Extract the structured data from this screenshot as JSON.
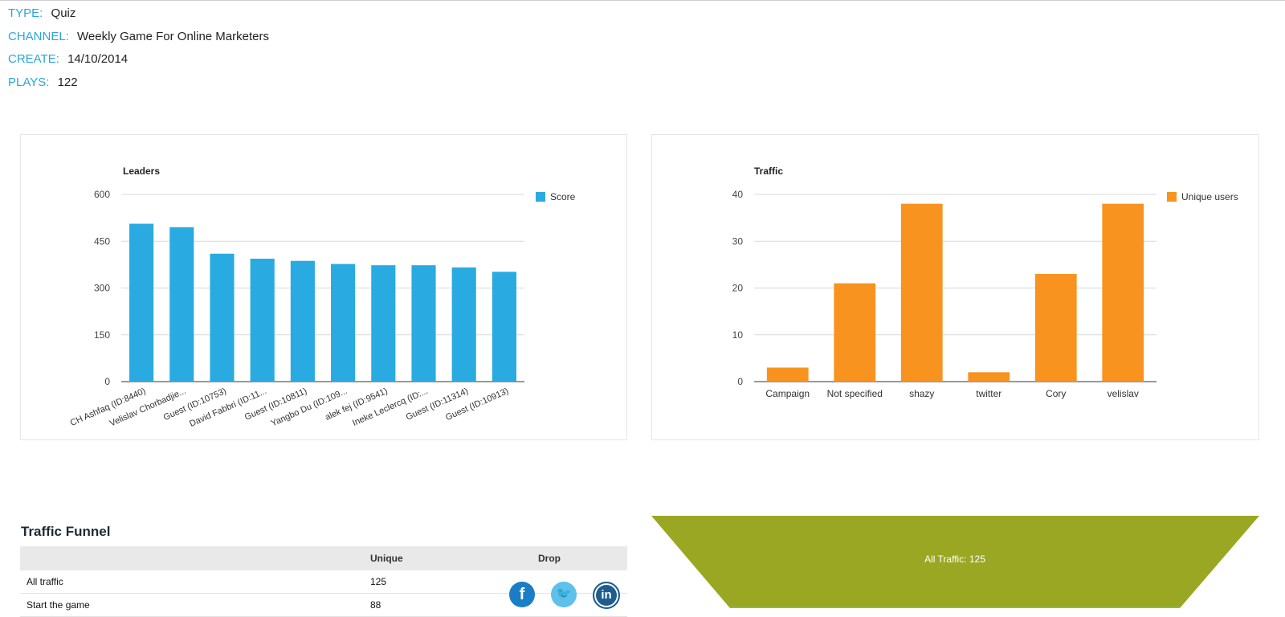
{
  "meta": {
    "type_label": "TYPE:",
    "type_value": "Quiz",
    "channel_label": "CHANNEL:",
    "channel_value": "Weekly Game For Online Marketers",
    "create_label": "CREATE:",
    "create_value": "14/10/2014",
    "plays_label": "PLAYS:",
    "plays_value": "122"
  },
  "chart_data": [
    {
      "type": "bar",
      "title": "Leaders",
      "categories": [
        "CH Ashfaq (ID:8440)",
        "Velislav Chorbadjie...",
        "Guest (ID:10753)",
        "David Fabbri (ID:11...",
        "Guest (ID:10811)",
        "Yangbo Du (ID:109...",
        "alek fej (ID:9541)",
        "Ineke Leclercq (ID:...",
        "Guest (ID:11314)",
        "Guest (ID:10913)"
      ],
      "series": [
        {
          "name": "Score",
          "values": [
            506,
            495,
            410,
            394,
            387,
            377,
            373,
            373,
            366,
            352
          ]
        }
      ],
      "ylim": [
        0,
        600
      ],
      "yticks": [
        "0",
        "150",
        "300",
        "450",
        "600"
      ],
      "color": "#29abe2",
      "legend": "right",
      "grid": true
    },
    {
      "type": "bar",
      "title": "Traffic",
      "categories": [
        "Campaign",
        "Not specified",
        "shazy",
        "twitter",
        "Cory",
        "velislav"
      ],
      "series": [
        {
          "name": "Unique users",
          "values": [
            3,
            21,
            38,
            2,
            23,
            38
          ]
        }
      ],
      "ylim": [
        0,
        40
      ],
      "yticks": [
        "0",
        "10",
        "20",
        "30",
        "40"
      ],
      "color": "#f7931e",
      "legend": "right",
      "grid": true
    }
  ],
  "funnel": {
    "heading": "Traffic Funnel",
    "columns": [
      "",
      "Unique",
      "Drop"
    ],
    "rows": [
      {
        "name": "All traffic",
        "unique": "125",
        "drop": ""
      },
      {
        "name": "Start the game",
        "unique": "88",
        "drop": ""
      }
    ],
    "stage_label": "All Traffic: 125",
    "color": "#9aa722"
  },
  "social": {
    "facebook_glyph": "f",
    "twitter_glyph": "🐦",
    "linkedin_glyph": "in"
  }
}
